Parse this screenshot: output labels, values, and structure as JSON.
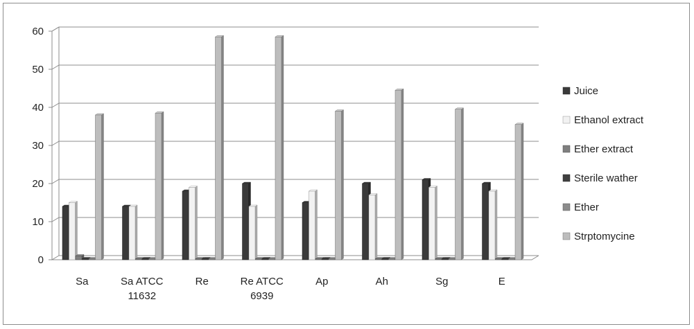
{
  "chart_data": {
    "type": "bar",
    "title": "",
    "xlabel": "",
    "ylabel": "",
    "ylim": [
      0,
      60
    ],
    "yticks": [
      0,
      10,
      20,
      30,
      40,
      50,
      60
    ],
    "grid": true,
    "legend_position": "right",
    "categories": [
      [
        "Sa"
      ],
      [
        "Sa ATCC",
        "11632"
      ],
      [
        "Re"
      ],
      [
        "Re ATCC",
        "6939"
      ],
      [
        "Ap"
      ],
      [
        "Ah"
      ],
      [
        "Sg"
      ],
      [
        "E"
      ]
    ],
    "series": [
      {
        "name": "Juice",
        "color": "#3a3a3a",
        "values": [
          14,
          14,
          18,
          20,
          15,
          20,
          21,
          20
        ]
      },
      {
        "name": "Ethanol extract",
        "color": "#f2f2f2",
        "values": [
          15,
          14,
          19,
          14,
          18,
          17,
          19,
          18
        ]
      },
      {
        "name": "Ether extract",
        "color": "#7f7f7f",
        "values": [
          1,
          0,
          0,
          0,
          0,
          0,
          0,
          0
        ]
      },
      {
        "name": "Sterile wather",
        "color": "#404040",
        "values": [
          0,
          0,
          0,
          0,
          0,
          0,
          0,
          0
        ]
      },
      {
        "name": "Ether",
        "color": "#8c8c8c",
        "values": [
          0,
          0,
          0,
          0,
          0,
          0,
          0,
          0
        ]
      },
      {
        "name": "Strptomycine",
        "color": "#bdbdbd",
        "values": [
          38,
          38.5,
          58.5,
          58.5,
          39,
          44.5,
          39.5,
          35.5
        ]
      }
    ]
  }
}
